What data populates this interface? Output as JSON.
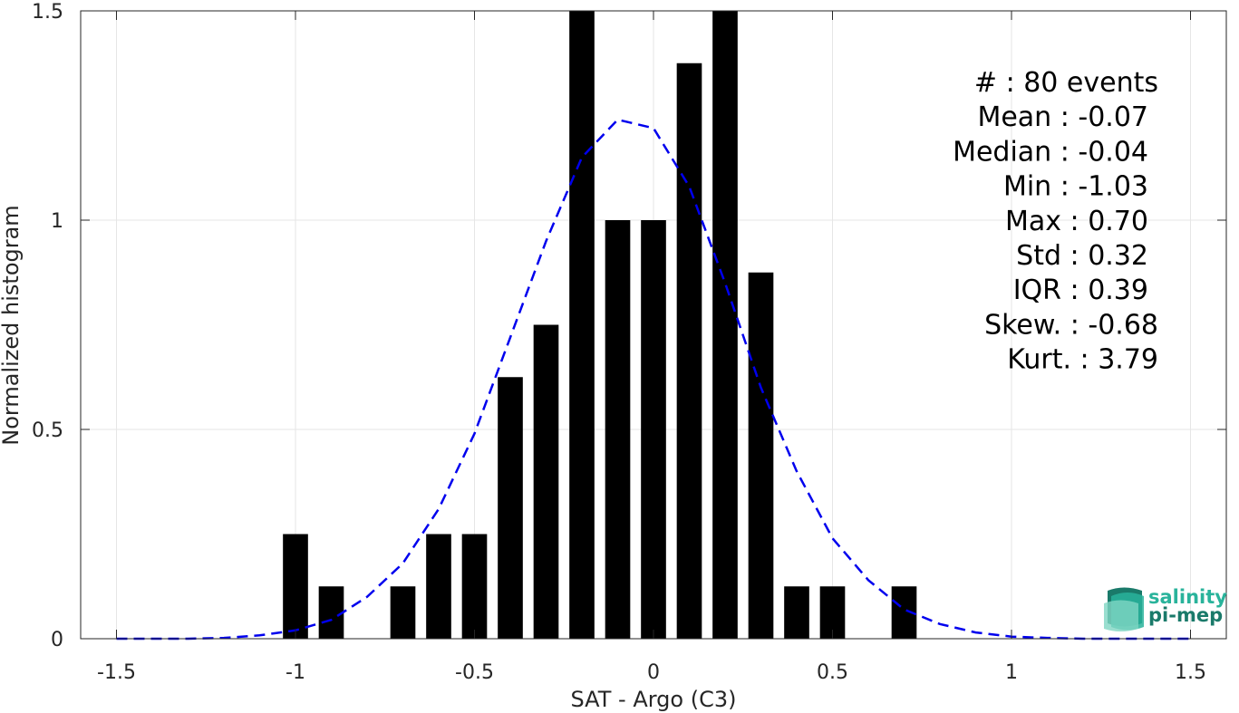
{
  "chart_data": {
    "type": "bar",
    "xlabel": "SAT - Argo (C3)",
    "ylabel": "Normalized histogram",
    "xlim": [
      -1.6,
      1.6
    ],
    "ylim": [
      0,
      1.5
    ],
    "grid": true,
    "x_ticks": [
      -1.5,
      -1,
      -0.5,
      0,
      0.5,
      1,
      1.5
    ],
    "x_tick_labels": [
      "-1.5",
      "-1",
      "-0.5",
      "0",
      "0.5",
      "1",
      "1.5"
    ],
    "y_ticks": [
      0,
      0.5,
      1,
      1.5
    ],
    "y_tick_labels": [
      "0",
      "0.5",
      "1",
      "1.5"
    ],
    "bar_width": 0.07,
    "bars": [
      {
        "x": -1.0,
        "y": 0.25
      },
      {
        "x": -0.9,
        "y": 0.125
      },
      {
        "x": -0.7,
        "y": 0.125
      },
      {
        "x": -0.6,
        "y": 0.25
      },
      {
        "x": -0.5,
        "y": 0.25
      },
      {
        "x": -0.4,
        "y": 0.625
      },
      {
        "x": -0.3,
        "y": 0.75
      },
      {
        "x": -0.2,
        "y": 1.5
      },
      {
        "x": -0.1,
        "y": 1.0
      },
      {
        "x": 0.0,
        "y": 1.0
      },
      {
        "x": 0.1,
        "y": 1.375
      },
      {
        "x": 0.2,
        "y": 1.5
      },
      {
        "x": 0.3,
        "y": 0.875
      },
      {
        "x": 0.4,
        "y": 0.125
      },
      {
        "x": 0.5,
        "y": 0.125
      },
      {
        "x": 0.7,
        "y": 0.125
      }
    ],
    "fit_curve": {
      "style": "dashed",
      "color": "#0000ee",
      "x": [
        -1.5,
        -1.4,
        -1.3,
        -1.2,
        -1.1,
        -1.0,
        -0.9,
        -0.8,
        -0.7,
        -0.6,
        -0.5,
        -0.4,
        -0.3,
        -0.2,
        -0.1,
        0.0,
        0.1,
        0.2,
        0.3,
        0.4,
        0.5,
        0.6,
        0.7,
        0.8,
        0.9,
        1.0,
        1.1,
        1.2,
        1.3,
        1.4,
        1.5
      ],
      "y": [
        0.0,
        0.0,
        0.0,
        0.002,
        0.008,
        0.02,
        0.045,
        0.1,
        0.18,
        0.31,
        0.49,
        0.72,
        0.95,
        1.15,
        1.24,
        1.22,
        1.08,
        0.85,
        0.6,
        0.4,
        0.24,
        0.14,
        0.07,
        0.035,
        0.015,
        0.005,
        0.002,
        0.0,
        0.0,
        0.0,
        0.0
      ]
    },
    "stats": [
      "#  : 80 events",
      "Mean : -0.07",
      "Median : -0.04",
      "Min : -1.03",
      "Max : 0.70",
      "Std : 0.32",
      "IQR : 0.39",
      "Skew. : -0.68",
      "Kurt. : 3.79"
    ]
  },
  "logo": {
    "line1": "salinity",
    "line2": "pi-mep"
  },
  "colors": {
    "bars": "#000000",
    "curve": "#0000ee",
    "grid": "#e6e6e6",
    "axis": "#262626",
    "logo_dark": "#1a7a6a",
    "logo_light": "#29b39b"
  }
}
